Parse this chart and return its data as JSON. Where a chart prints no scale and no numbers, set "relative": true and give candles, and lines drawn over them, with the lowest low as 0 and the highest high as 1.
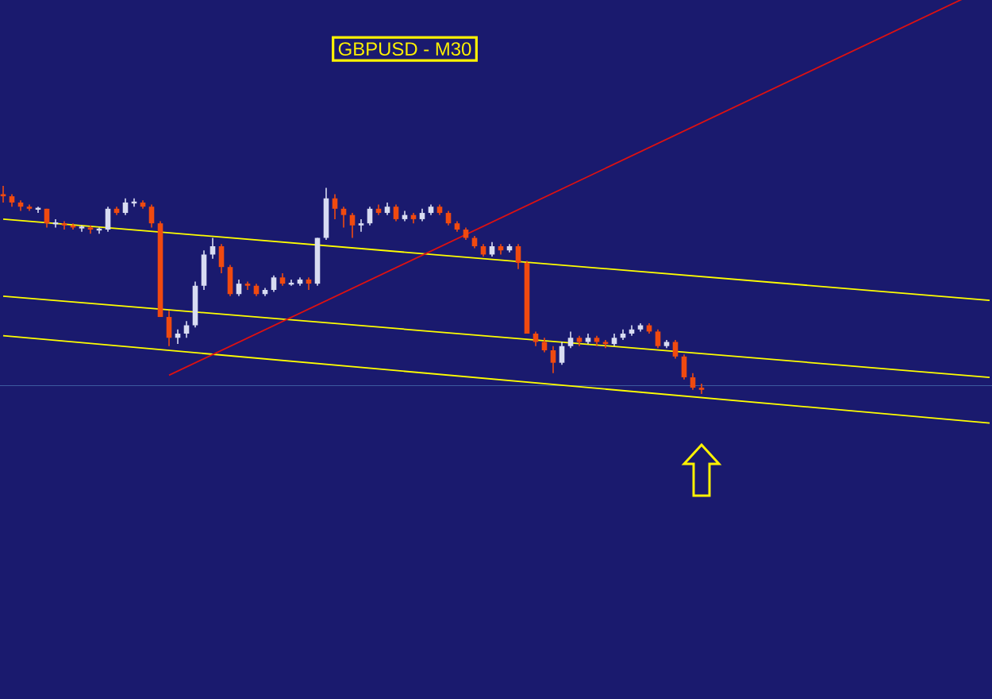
{
  "chart_data": {
    "type": "candlestick",
    "title": "GBPUSD - M30",
    "relative": true,
    "tick_labels": false,
    "categories": [
      null,
      null,
      null,
      null,
      null,
      null,
      null,
      null,
      null,
      null,
      null,
      null,
      null,
      null,
      null,
      null,
      null,
      null,
      null,
      null,
      null,
      null,
      null,
      null,
      null,
      null,
      null,
      null,
      null,
      null,
      null,
      null,
      null,
      null,
      null,
      null,
      null,
      null,
      null,
      null,
      null,
      null,
      null,
      null,
      null,
      null,
      null,
      null,
      null,
      null,
      null,
      null,
      null,
      null,
      null,
      null,
      null,
      null,
      null,
      null,
      null,
      null,
      null,
      null,
      null,
      null,
      null,
      null,
      null,
      null,
      null,
      null,
      null,
      null,
      null,
      null,
      null,
      null,
      null,
      null,
      null,
      null,
      null,
      null,
      null,
      null,
      null,
      null,
      null,
      null,
      null,
      null,
      null,
      null,
      null,
      null,
      null,
      null,
      null,
      null,
      null,
      null,
      null,
      null,
      null,
      null,
      null,
      null,
      null,
      null,
      null,
      null,
      null,
      null
    ],
    "ohlc": [
      [
        0.96,
        1.0,
        0.92,
        0.95
      ],
      [
        0.95,
        0.96,
        0.9,
        0.92
      ],
      [
        0.92,
        0.93,
        0.88,
        0.9
      ],
      [
        0.9,
        0.91,
        0.88,
        0.89
      ],
      [
        0.89,
        0.9,
        0.87,
        0.89
      ],
      [
        0.89,
        0.89,
        0.8,
        0.82
      ],
      [
        0.82,
        0.84,
        0.8,
        0.82
      ],
      [
        0.82,
        0.83,
        0.79,
        0.81
      ],
      [
        0.81,
        0.82,
        0.79,
        0.8
      ],
      [
        0.8,
        0.81,
        0.78,
        0.8
      ],
      [
        0.8,
        0.81,
        0.77,
        0.79
      ],
      [
        0.79,
        0.8,
        0.77,
        0.79
      ],
      [
        0.79,
        0.9,
        0.78,
        0.89
      ],
      [
        0.89,
        0.9,
        0.86,
        0.87
      ],
      [
        0.87,
        0.94,
        0.86,
        0.92
      ],
      [
        0.92,
        0.94,
        0.9,
        0.92
      ],
      [
        0.92,
        0.93,
        0.89,
        0.9
      ],
      [
        0.9,
        0.91,
        0.8,
        0.82
      ],
      [
        0.82,
        0.83,
        0.37,
        0.37
      ],
      [
        0.37,
        0.4,
        0.23,
        0.27
      ],
      [
        0.27,
        0.31,
        0.24,
        0.29
      ],
      [
        0.29,
        0.35,
        0.27,
        0.33
      ],
      [
        0.33,
        0.54,
        0.32,
        0.52
      ],
      [
        0.52,
        0.69,
        0.5,
        0.67
      ],
      [
        0.67,
        0.75,
        0.65,
        0.71
      ],
      [
        0.71,
        0.72,
        0.58,
        0.61
      ],
      [
        0.61,
        0.62,
        0.47,
        0.48
      ],
      [
        0.48,
        0.55,
        0.47,
        0.53
      ],
      [
        0.53,
        0.54,
        0.5,
        0.52
      ],
      [
        0.52,
        0.53,
        0.47,
        0.48
      ],
      [
        0.48,
        0.51,
        0.47,
        0.5
      ],
      [
        0.5,
        0.57,
        0.49,
        0.56
      ],
      [
        0.56,
        0.58,
        0.52,
        0.53
      ],
      [
        0.53,
        0.55,
        0.52,
        0.53
      ],
      [
        0.53,
        0.56,
        0.52,
        0.55
      ],
      [
        0.55,
        0.56,
        0.5,
        0.53
      ],
      [
        0.53,
        0.75,
        0.52,
        0.75
      ],
      [
        0.75,
        0.99,
        0.74,
        0.94
      ],
      [
        0.94,
        0.96,
        0.84,
        0.89
      ],
      [
        0.89,
        0.9,
        0.8,
        0.86
      ],
      [
        0.86,
        0.87,
        0.75,
        0.81
      ],
      [
        0.81,
        0.84,
        0.78,
        0.82
      ],
      [
        0.82,
        0.9,
        0.81,
        0.89
      ],
      [
        0.89,
        0.91,
        0.86,
        0.87
      ],
      [
        0.87,
        0.92,
        0.86,
        0.9
      ],
      [
        0.9,
        0.91,
        0.83,
        0.84
      ],
      [
        0.84,
        0.88,
        0.83,
        0.86
      ],
      [
        0.86,
        0.87,
        0.82,
        0.84
      ],
      [
        0.84,
        0.89,
        0.83,
        0.87
      ],
      [
        0.87,
        0.91,
        0.86,
        0.9
      ],
      [
        0.9,
        0.91,
        0.86,
        0.87
      ],
      [
        0.87,
        0.88,
        0.81,
        0.82
      ],
      [
        0.82,
        0.83,
        0.78,
        0.79
      ],
      [
        0.79,
        0.8,
        0.74,
        0.75
      ],
      [
        0.75,
        0.76,
        0.7,
        0.71
      ],
      [
        0.71,
        0.72,
        0.66,
        0.67
      ],
      [
        0.67,
        0.73,
        0.66,
        0.71
      ],
      [
        0.71,
        0.72,
        0.67,
        0.69
      ],
      [
        0.69,
        0.72,
        0.68,
        0.71
      ],
      [
        0.71,
        0.72,
        0.6,
        0.63
      ],
      [
        0.63,
        0.64,
        0.29,
        0.29
      ],
      [
        0.29,
        0.3,
        0.23,
        0.25
      ],
      [
        0.25,
        0.27,
        0.2,
        0.21
      ],
      [
        0.21,
        0.23,
        0.1,
        0.15
      ],
      [
        0.15,
        0.25,
        0.14,
        0.23
      ],
      [
        0.23,
        0.3,
        0.22,
        0.27
      ],
      [
        0.27,
        0.28,
        0.23,
        0.25
      ],
      [
        0.25,
        0.29,
        0.24,
        0.27
      ],
      [
        0.27,
        0.28,
        0.23,
        0.25
      ],
      [
        0.25,
        0.26,
        0.22,
        0.24
      ],
      [
        0.24,
        0.29,
        0.23,
        0.27
      ],
      [
        0.27,
        0.31,
        0.26,
        0.29
      ],
      [
        0.29,
        0.33,
        0.28,
        0.31
      ],
      [
        0.31,
        0.34,
        0.3,
        0.33
      ],
      [
        0.33,
        0.34,
        0.29,
        0.3
      ],
      [
        0.3,
        0.31,
        0.22,
        0.23
      ],
      [
        0.23,
        0.26,
        0.22,
        0.25
      ],
      [
        0.25,
        0.26,
        0.17,
        0.18
      ],
      [
        0.18,
        0.19,
        0.07,
        0.08
      ],
      [
        0.08,
        0.1,
        0.02,
        0.03
      ],
      [
        0.03,
        0.05,
        0.0,
        0.02
      ],
      null,
      null,
      null,
      null,
      null,
      null,
      null,
      null,
      null,
      null,
      null,
      null,
      null,
      null,
      null,
      null,
      null,
      null,
      null,
      null,
      null,
      null,
      null,
      null,
      null,
      null,
      null,
      null,
      null,
      null,
      null,
      null,
      null
    ],
    "series": [
      {
        "type": "line",
        "color": "#ffff00",
        "values": [
          0.84,
          null,
          null,
          null,
          null,
          null,
          null,
          null,
          null,
          null,
          null,
          null,
          null,
          null,
          null,
          null,
          null,
          null,
          null,
          null,
          null,
          null,
          null,
          null,
          null,
          null,
          null,
          null,
          null,
          null,
          null,
          null,
          null,
          null,
          null,
          null,
          null,
          null,
          null,
          null,
          null,
          null,
          null,
          null,
          null,
          null,
          null,
          null,
          null,
          null,
          null,
          null,
          null,
          null,
          null,
          null,
          null,
          null,
          null,
          null,
          null,
          null,
          null,
          null,
          null,
          null,
          null,
          null,
          null,
          null,
          null,
          null,
          null,
          null,
          null,
          null,
          null,
          null,
          null,
          null,
          null,
          null,
          null,
          null,
          null,
          null,
          null,
          null,
          null,
          null,
          null,
          null,
          null,
          null,
          null,
          null,
          null,
          null,
          null,
          null,
          null,
          null,
          null,
          null,
          null,
          null,
          null,
          null,
          null,
          null,
          null,
          null,
          null,
          0.45
        ]
      },
      {
        "type": "line",
        "color": "#ffff00",
        "values": [
          0.47,
          null,
          null,
          null,
          null,
          null,
          null,
          null,
          null,
          null,
          null,
          null,
          null,
          null,
          null,
          null,
          null,
          null,
          null,
          null,
          null,
          null,
          null,
          null,
          null,
          null,
          null,
          null,
          null,
          null,
          null,
          null,
          null,
          null,
          null,
          null,
          null,
          null,
          null,
          null,
          null,
          null,
          null,
          null,
          null,
          null,
          null,
          null,
          null,
          null,
          null,
          null,
          null,
          null,
          null,
          null,
          null,
          null,
          null,
          null,
          null,
          null,
          null,
          null,
          null,
          null,
          null,
          null,
          null,
          null,
          null,
          null,
          null,
          null,
          null,
          null,
          null,
          null,
          null,
          null,
          null,
          null,
          null,
          null,
          null,
          null,
          null,
          null,
          null,
          null,
          null,
          null,
          null,
          null,
          null,
          null,
          null,
          null,
          null,
          null,
          null,
          null,
          null,
          null,
          null,
          null,
          null,
          null,
          null,
          null,
          null,
          null,
          null,
          0.08
        ]
      },
      {
        "type": "line",
        "color": "#ffff00",
        "values": [
          0.28,
          null,
          null,
          null,
          null,
          null,
          null,
          null,
          null,
          null,
          null,
          null,
          null,
          null,
          null,
          null,
          null,
          null,
          null,
          null,
          null,
          null,
          null,
          null,
          null,
          null,
          null,
          null,
          null,
          null,
          null,
          null,
          null,
          null,
          null,
          null,
          null,
          null,
          null,
          null,
          null,
          null,
          null,
          null,
          null,
          null,
          null,
          null,
          null,
          null,
          null,
          null,
          null,
          null,
          null,
          null,
          null,
          null,
          null,
          null,
          null,
          null,
          null,
          null,
          null,
          null,
          null,
          null,
          null,
          null,
          null,
          null,
          null,
          null,
          null,
          null,
          null,
          null,
          null,
          null,
          null,
          null,
          null,
          null,
          null,
          null,
          null,
          null,
          null,
          null,
          null,
          null,
          null,
          null,
          null,
          null,
          null,
          null,
          null,
          null,
          null,
          null,
          null,
          null,
          null,
          null,
          null,
          null,
          null,
          null,
          null,
          null,
          null,
          -0.14
        ]
      },
      {
        "type": "line",
        "color": "#dd1111",
        "values": [
          null,
          null,
          null,
          null,
          null,
          null,
          null,
          null,
          null,
          null,
          null,
          null,
          null,
          null,
          null,
          null,
          null,
          null,
          null,
          0.09,
          null,
          null,
          null,
          null,
          null,
          null,
          null,
          null,
          null,
          null,
          null,
          null,
          null,
          null,
          null,
          null,
          null,
          null,
          null,
          null,
          null,
          null,
          null,
          null,
          null,
          null,
          null,
          null,
          null,
          null,
          null,
          null,
          null,
          null,
          null,
          null,
          null,
          null,
          null,
          null,
          null,
          null,
          null,
          null,
          null,
          null,
          null,
          null,
          null,
          null,
          null,
          null,
          null,
          null,
          null,
          null,
          null,
          null,
          null,
          null,
          null,
          null,
          null,
          null,
          null,
          null,
          null,
          null,
          null,
          null,
          null,
          null,
          null,
          null,
          null,
          null,
          null,
          null,
          null,
          null,
          null,
          null,
          null,
          null,
          null,
          null,
          null,
          null,
          null,
          null,
          1.9,
          null,
          null,
          null
        ]
      }
    ],
    "ref_lines": [
      {
        "axis": "y",
        "value": 0.04,
        "color": "#3c5aa0"
      }
    ]
  }
}
